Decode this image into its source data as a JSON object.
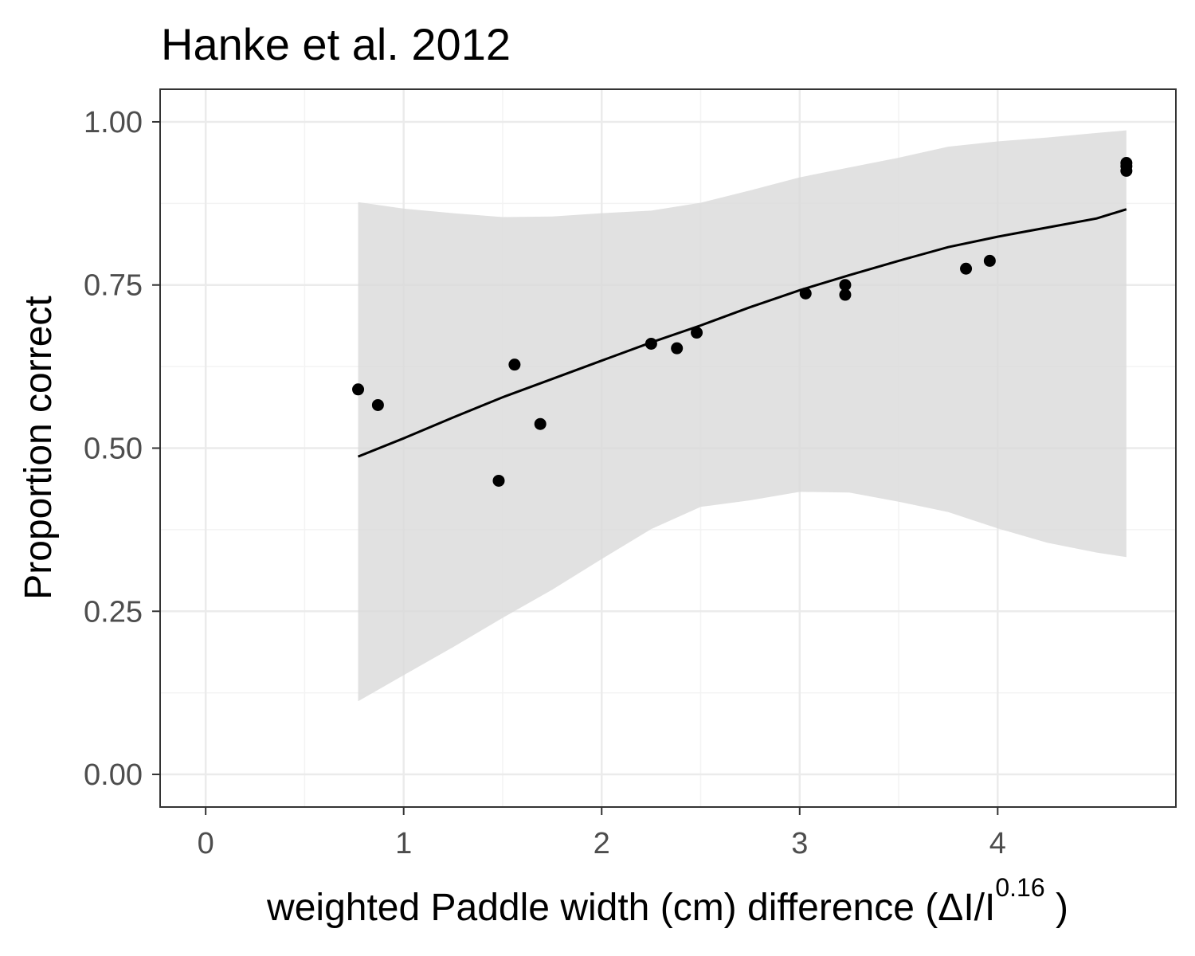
{
  "chart_data": {
    "type": "scatter",
    "title": "Hanke et al. 2012",
    "xlabel": {
      "pre": "weighted  Paddle width (cm)  difference (ΔI/I",
      "superscript": "0.16",
      "post": " )"
    },
    "ylabel": "Proportion correct",
    "xlim": [
      -0.23,
      4.9
    ],
    "ylim": [
      -0.05,
      1.05
    ],
    "x_ticks": [
      0,
      1,
      2,
      3,
      4
    ],
    "x_tick_labels": [
      "0",
      "1",
      "2",
      "3",
      "4"
    ],
    "y_ticks": [
      0.0,
      0.25,
      0.5,
      0.75,
      1.0
    ],
    "y_tick_labels": [
      "0.00",
      "0.25",
      "0.50",
      "0.75",
      "1.00"
    ],
    "grid": true,
    "points": [
      {
        "x": 0.77,
        "y": 0.59
      },
      {
        "x": 0.87,
        "y": 0.566
      },
      {
        "x": 1.48,
        "y": 0.45
      },
      {
        "x": 1.56,
        "y": 0.628
      },
      {
        "x": 1.69,
        "y": 0.537
      },
      {
        "x": 2.25,
        "y": 0.66
      },
      {
        "x": 2.38,
        "y": 0.653
      },
      {
        "x": 2.48,
        "y": 0.677
      },
      {
        "x": 3.03,
        "y": 0.737
      },
      {
        "x": 3.23,
        "y": 0.75
      },
      {
        "x": 3.23,
        "y": 0.735
      },
      {
        "x": 3.84,
        "y": 0.775
      },
      {
        "x": 3.96,
        "y": 0.787
      },
      {
        "x": 4.65,
        "y": 0.937
      },
      {
        "x": 4.65,
        "y": 0.932
      },
      {
        "x": 4.65,
        "y": 0.925
      }
    ],
    "fit_line": {
      "x": [
        0.77,
        1.0,
        1.25,
        1.5,
        1.75,
        2.0,
        2.25,
        2.5,
        2.75,
        3.0,
        3.25,
        3.5,
        3.75,
        4.0,
        4.25,
        4.5,
        4.65
      ],
      "y": [
        0.487,
        0.515,
        0.547,
        0.578,
        0.606,
        0.634,
        0.662,
        0.688,
        0.716,
        0.742,
        0.765,
        0.787,
        0.808,
        0.824,
        0.838,
        0.852,
        0.866
      ]
    },
    "confidence_band": {
      "x": [
        0.77,
        1.0,
        1.25,
        1.5,
        1.75,
        2.0,
        2.25,
        2.5,
        2.75,
        3.0,
        3.25,
        3.5,
        3.75,
        4.0,
        4.25,
        4.5,
        4.65
      ],
      "upper": [
        0.877,
        0.867,
        0.86,
        0.854,
        0.855,
        0.86,
        0.864,
        0.876,
        0.895,
        0.915,
        0.93,
        0.945,
        0.962,
        0.97,
        0.976,
        0.983,
        0.987
      ],
      "lower": [
        0.112,
        0.152,
        0.195,
        0.24,
        0.283,
        0.33,
        0.376,
        0.41,
        0.42,
        0.433,
        0.432,
        0.418,
        0.402,
        0.377,
        0.355,
        0.34,
        0.333
      ]
    },
    "colors": {
      "panel_background": "#ffffff",
      "panel_border": "#333333",
      "grid_major": "#ebebeb",
      "grid_minor": "#f3f3f3",
      "band": "#d9d9d9",
      "points": "#000000",
      "line": "#000000"
    }
  }
}
